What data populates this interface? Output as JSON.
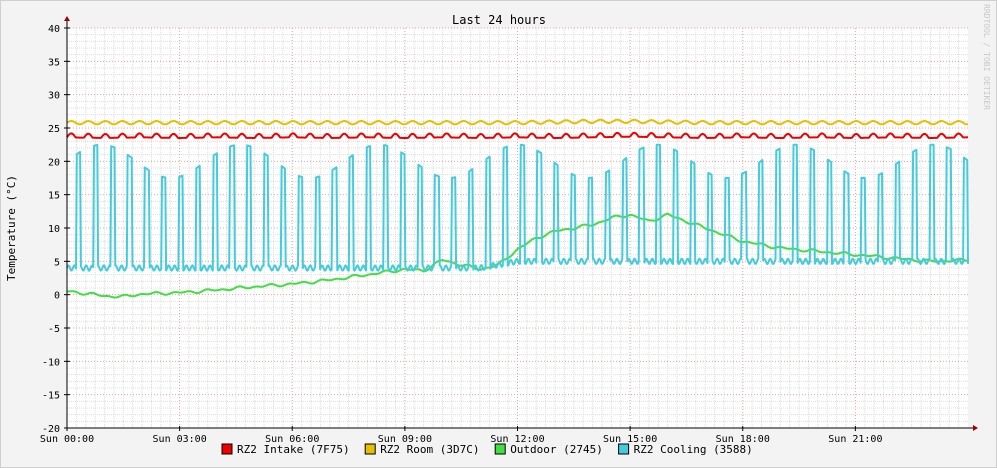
{
  "chart_data": {
    "type": "line",
    "title": "Last 24 hours",
    "ylabel": "Temperature (°C)",
    "watermark": "RRDTOOL / TOBI OETIKER",
    "ylim": [
      -20,
      40
    ],
    "xlim": [
      0,
      24
    ],
    "y_ticks": [
      -20,
      -15,
      -10,
      -5,
      0,
      5,
      10,
      15,
      20,
      25,
      30,
      35,
      40
    ],
    "x_ticks": [
      {
        "x": 0,
        "label": "Sun 00:00"
      },
      {
        "x": 3,
        "label": "Sun 03:00"
      },
      {
        "x": 6,
        "label": "Sun 06:00"
      },
      {
        "x": 9,
        "label": "Sun 09:00"
      },
      {
        "x": 12,
        "label": "Sun 12:00"
      },
      {
        "x": 15,
        "label": "Sun 15:00"
      },
      {
        "x": 18,
        "label": "Sun 18:00"
      },
      {
        "x": 21,
        "label": "Sun 21:00"
      }
    ],
    "grid": true,
    "legend_position": "bottom",
    "series": [
      {
        "name": "RZ2 Intake (7F75)",
        "color": "#ee0000",
        "x": [
          0,
          1,
          2,
          3,
          4,
          5,
          6,
          7,
          8,
          9,
          10,
          11,
          12,
          13,
          14,
          15,
          16,
          17,
          18,
          19,
          20,
          21,
          22,
          23,
          24
        ],
        "y": [
          23.8,
          23.7,
          23.8,
          23.7,
          23.8,
          23.7,
          23.8,
          23.7,
          23.8,
          23.7,
          23.8,
          23.7,
          23.8,
          23.7,
          23.8,
          23.9,
          23.8,
          23.7,
          23.8,
          23.7,
          23.8,
          23.7,
          23.8,
          23.7,
          23.8
        ],
        "range": [
          23,
          25
        ]
      },
      {
        "name": "RZ2 Room (3D7C)",
        "color": "#e6c000",
        "x": [
          0,
          1,
          2,
          3,
          4,
          5,
          6,
          7,
          8,
          9,
          10,
          11,
          12,
          13,
          14,
          15,
          16,
          17,
          18,
          19,
          20,
          21,
          22,
          23,
          24
        ],
        "y": [
          25.8,
          25.8,
          25.8,
          25.8,
          25.8,
          25.8,
          25.8,
          25.8,
          25.8,
          25.8,
          25.8,
          25.8,
          25.8,
          25.9,
          26,
          26,
          25.9,
          25.8,
          25.8,
          25.8,
          25.8,
          25.8,
          25.8,
          25.8,
          25.8
        ],
        "range": [
          25.3,
          26.5
        ]
      },
      {
        "name": "Outdoor (2745)",
        "color": "#44dd44",
        "x": [
          0,
          0.5,
          1,
          1.5,
          2,
          3,
          4,
          5,
          6,
          7,
          8,
          9,
          9.5,
          10,
          11,
          11.5,
          12,
          12.5,
          13,
          14,
          14.5,
          15,
          15.5,
          16,
          17,
          18,
          19,
          20,
          21,
          22,
          23,
          24
        ],
        "y": [
          0.5,
          0.2,
          -0.2,
          -0.3,
          0.1,
          0.3,
          0.7,
          1.2,
          1.6,
          2.2,
          3.0,
          3.8,
          3.6,
          5.2,
          3.8,
          4.5,
          6.8,
          8.5,
          9.5,
          10.5,
          11.5,
          12.0,
          11.0,
          12.0,
          10.0,
          8.0,
          7.0,
          6.5,
          6.0,
          5.5,
          5.0,
          5.2
        ]
      },
      {
        "name": "RZ2 Cooling (3588)",
        "color": "#44ccdd",
        "x": [
          0,
          1,
          2,
          3,
          4,
          5,
          6,
          7,
          8,
          9,
          10,
          11,
          12,
          13,
          14,
          15,
          16,
          17,
          18,
          19,
          20,
          21,
          22,
          23,
          24
        ],
        "y": [
          4,
          4,
          4,
          4,
          4,
          4,
          4,
          4,
          4,
          4,
          4,
          4,
          5,
          5,
          5,
          5,
          5,
          5,
          5,
          5,
          5,
          5,
          5,
          5,
          5
        ],
        "range": [
          3.5,
          27
        ]
      }
    ]
  }
}
